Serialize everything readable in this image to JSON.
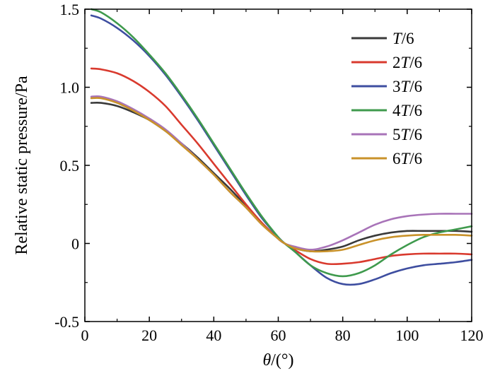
{
  "chart_data": {
    "type": "line",
    "title": "",
    "xlabel": "θ/(°)",
    "ylabel": "Relative static pressure/Pa",
    "xlim": [
      0,
      120
    ],
    "ylim": [
      -0.5,
      1.5
    ],
    "xticks": [
      0,
      20,
      40,
      60,
      80,
      100,
      120
    ],
    "xtick_labels": [
      "0",
      "20",
      "40",
      "60",
      "80",
      "100",
      "120"
    ],
    "yticks": [
      -0.5,
      0,
      0.5,
      1.0,
      1.5
    ],
    "ytick_labels": [
      "-0.5",
      "0",
      "0.5",
      "1.0",
      "1.5"
    ],
    "grid": false,
    "legend_position": "top-right",
    "series": [
      {
        "name": "T/6",
        "label_prefix": "",
        "label_italic": "T",
        "label_suffix": "/6",
        "color": "#3a3a3a",
        "x": [
          2,
          5,
          10,
          15,
          20,
          25,
          30,
          35,
          40,
          45,
          50,
          55,
          60,
          62,
          65,
          70,
          75,
          80,
          85,
          90,
          95,
          100,
          105,
          110,
          115,
          120
        ],
        "y": [
          0.9,
          0.9,
          0.88,
          0.84,
          0.79,
          0.72,
          0.64,
          0.55,
          0.45,
          0.35,
          0.24,
          0.13,
          0.03,
          0.0,
          -0.03,
          -0.05,
          -0.04,
          -0.02,
          0.02,
          0.05,
          0.07,
          0.08,
          0.08,
          0.08,
          0.08,
          0.075
        ]
      },
      {
        "name": "2T/6",
        "label_prefix": "2",
        "label_italic": "T",
        "label_suffix": "/6",
        "color": "#d93a2e",
        "x": [
          2,
          5,
          10,
          15,
          20,
          25,
          30,
          35,
          40,
          45,
          50,
          55,
          60,
          62,
          65,
          70,
          75,
          80,
          85,
          90,
          95,
          100,
          105,
          110,
          115,
          120
        ],
        "y": [
          1.12,
          1.115,
          1.09,
          1.04,
          0.97,
          0.88,
          0.76,
          0.64,
          0.51,
          0.38,
          0.25,
          0.13,
          0.03,
          0.0,
          -0.04,
          -0.1,
          -0.13,
          -0.13,
          -0.12,
          -0.1,
          -0.08,
          -0.07,
          -0.065,
          -0.065,
          -0.065,
          -0.07
        ]
      },
      {
        "name": "3T/6",
        "label_prefix": "3",
        "label_italic": "T",
        "label_suffix": "/6",
        "color": "#3e4ea0",
        "x": [
          2,
          5,
          10,
          15,
          20,
          25,
          30,
          35,
          40,
          45,
          50,
          55,
          60,
          62,
          65,
          70,
          75,
          80,
          85,
          90,
          95,
          100,
          105,
          110,
          115,
          120
        ],
        "y": [
          1.46,
          1.44,
          1.38,
          1.3,
          1.2,
          1.08,
          0.94,
          0.79,
          0.63,
          0.47,
          0.31,
          0.16,
          0.04,
          0.0,
          -0.05,
          -0.14,
          -0.22,
          -0.26,
          -0.26,
          -0.23,
          -0.19,
          -0.16,
          -0.14,
          -0.13,
          -0.12,
          -0.105
        ]
      },
      {
        "name": "4T/6",
        "label_prefix": "4",
        "label_italic": "T",
        "label_suffix": "/6",
        "color": "#3f9a4d",
        "x": [
          2,
          5,
          10,
          15,
          20,
          25,
          30,
          35,
          40,
          45,
          50,
          55,
          60,
          62,
          65,
          70,
          75,
          80,
          85,
          90,
          95,
          100,
          105,
          110,
          115,
          120
        ],
        "y": [
          1.5,
          1.48,
          1.41,
          1.32,
          1.21,
          1.09,
          0.95,
          0.8,
          0.64,
          0.48,
          0.32,
          0.17,
          0.04,
          0.0,
          -0.05,
          -0.14,
          -0.19,
          -0.21,
          -0.19,
          -0.14,
          -0.07,
          -0.01,
          0.04,
          0.07,
          0.09,
          0.11
        ]
      },
      {
        "name": "5T/6",
        "label_prefix": "5",
        "label_italic": "T",
        "label_suffix": "/6",
        "color": "#a873b8",
        "x": [
          2,
          5,
          10,
          15,
          20,
          25,
          30,
          35,
          40,
          45,
          50,
          55,
          60,
          62,
          65,
          70,
          75,
          80,
          85,
          90,
          95,
          100,
          105,
          110,
          115,
          120
        ],
        "y": [
          0.94,
          0.94,
          0.91,
          0.86,
          0.8,
          0.73,
          0.64,
          0.54,
          0.44,
          0.33,
          0.23,
          0.12,
          0.03,
          0.0,
          -0.02,
          -0.04,
          -0.02,
          0.02,
          0.07,
          0.12,
          0.155,
          0.175,
          0.185,
          0.19,
          0.19,
          0.19
        ]
      },
      {
        "name": "6T/6",
        "label_prefix": "6",
        "label_italic": "T",
        "label_suffix": "/6",
        "color": "#c9922a",
        "x": [
          2,
          5,
          10,
          15,
          20,
          25,
          30,
          35,
          40,
          45,
          50,
          55,
          60,
          62,
          65,
          70,
          75,
          80,
          85,
          90,
          95,
          100,
          105,
          110,
          115,
          120
        ],
        "y": [
          0.93,
          0.93,
          0.9,
          0.85,
          0.79,
          0.72,
          0.63,
          0.54,
          0.44,
          0.33,
          0.23,
          0.12,
          0.03,
          0.0,
          -0.03,
          -0.05,
          -0.05,
          -0.04,
          -0.01,
          0.02,
          0.04,
          0.05,
          0.055,
          0.055,
          0.055,
          0.05
        ]
      }
    ]
  }
}
